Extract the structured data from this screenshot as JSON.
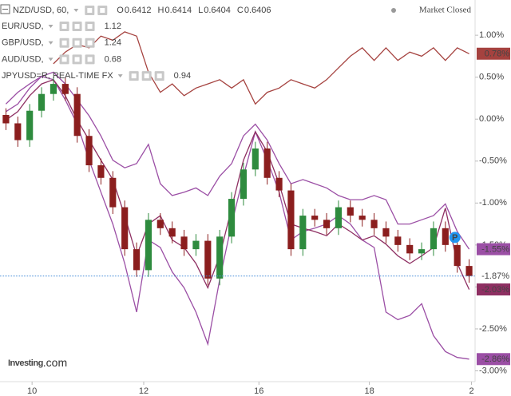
{
  "chart_data": {
    "type": "candlestick",
    "header": {
      "symbol": "NZD/USD, 60,",
      "ohlc": [
        {
          "label": "O",
          "value": 0.6412
        },
        {
          "label": "H",
          "value": 0.6414
        },
        {
          "label": "L",
          "value": 0.6404
        },
        {
          "label": "C",
          "value": 0.6406
        }
      ],
      "status": "Market Closed"
    },
    "logo": [
      "Investing",
      ".com"
    ],
    "x": [
      0,
      1,
      2,
      3,
      4,
      5,
      6,
      7,
      8,
      9,
      10,
      11,
      12,
      13,
      14,
      15,
      16,
      17,
      18,
      19,
      20,
      21,
      22,
      23,
      24,
      25,
      26,
      27,
      28,
      29,
      30,
      31,
      32,
      33,
      34,
      35,
      36,
      37,
      38,
      39
    ],
    "xlim": [
      -0.5,
      39.5
    ],
    "xticks": [
      {
        "value": 2.2,
        "label": "10"
      },
      {
        "value": 11.6,
        "label": "12"
      },
      {
        "value": 21.3,
        "label": "16"
      },
      {
        "value": 30.6,
        "label": "18"
      },
      {
        "value": 39.2,
        "label": "2"
      }
    ],
    "ylim": [
      -3.1,
      1.42
    ],
    "yticks": [
      {
        "value": 1,
        "label": "1.00%"
      },
      {
        "value": 0.5,
        "label": "0.50%"
      },
      {
        "value": 0,
        "label": "0.00%"
      },
      {
        "value": -0.5,
        "label": "-0.50%"
      },
      {
        "value": -1,
        "label": "-1.00%"
      },
      {
        "value": -1.5,
        "label": "-1.50%"
      },
      {
        "value": -2,
        "label": "-2.00%"
      },
      {
        "value": -2.5,
        "label": "-2.50%"
      },
      {
        "value": -3,
        "label": "-3.00%"
      }
    ],
    "grid": false,
    "candles": {
      "up_color": "#2e8b3e",
      "down_color": "#8b1e1e",
      "price_line_color": "#4a90d9",
      "open": [
        0.05,
        -0.05,
        -0.25,
        0.1,
        0.3,
        0.42,
        0.3,
        -0.2,
        -0.55,
        -0.7,
        -1.05,
        -1.55,
        -1.8,
        -1.2,
        -1.3,
        -1.4,
        -1.55,
        -1.45,
        -1.9,
        -1.4,
        -0.95,
        -0.6,
        -0.35,
        -0.7,
        -0.85,
        -1.55,
        -1.15,
        -1.2,
        -1.3,
        -1.05,
        -1.15,
        -1.2,
        -1.3,
        -1.4,
        -1.5,
        -1.6,
        -1.55,
        -1.3,
        -1.5,
        -1.75
      ],
      "high": [
        0.13,
        0.03,
        0.18,
        0.38,
        0.5,
        0.5,
        0.38,
        -0.12,
        -0.47,
        -0.62,
        -0.97,
        -1.47,
        -1.12,
        -1.12,
        -1.22,
        -1.32,
        -1.37,
        -1.37,
        -1.32,
        -0.87,
        -0.52,
        -0.27,
        -0.27,
        -0.62,
        -0.77,
        -1.07,
        -1.07,
        -1.12,
        -0.97,
        -0.97,
        -1.07,
        -1.12,
        -1.22,
        -1.32,
        -1.42,
        -1.47,
        -1.22,
        -1.22,
        -1.42,
        -1.67
      ],
      "low": [
        -0.13,
        -0.33,
        -0.33,
        0.02,
        0.22,
        0.22,
        -0.28,
        -0.63,
        -0.78,
        -1.13,
        -1.63,
        -1.88,
        -1.88,
        -1.38,
        -1.48,
        -1.63,
        -1.63,
        -1.98,
        -1.98,
        -1.48,
        -1.03,
        -0.68,
        -0.78,
        -0.93,
        -1.63,
        -1.63,
        -1.28,
        -1.38,
        -1.38,
        -1.23,
        -1.28,
        -1.38,
        -1.48,
        -1.58,
        -1.68,
        -1.68,
        -1.63,
        -1.58,
        -1.83,
        -1.95
      ],
      "close": [
        -0.05,
        -0.25,
        0.1,
        0.3,
        0.42,
        0.3,
        -0.2,
        -0.55,
        -0.7,
        -1.05,
        -1.55,
        -1.8,
        -1.2,
        -1.3,
        -1.4,
        -1.55,
        -1.45,
        -1.9,
        -1.4,
        -0.95,
        -0.6,
        -0.35,
        -0.7,
        -0.85,
        -1.55,
        -1.15,
        -1.2,
        -1.3,
        -1.05,
        -1.15,
        -1.2,
        -1.3,
        -1.4,
        -1.5,
        -1.6,
        -1.55,
        -1.3,
        -1.5,
        -1.75,
        -1.87
      ],
      "value_labels": [
        null,
        null,
        null,
        null,
        null,
        null,
        null,
        null,
        null,
        null,
        null,
        null,
        null,
        null,
        null,
        null,
        null,
        null,
        null,
        null,
        null,
        null,
        null,
        null,
        null,
        null,
        null,
        null,
        null,
        null,
        null,
        null,
        null,
        null,
        null,
        null,
        null,
        null,
        null,
        "-1.87%"
      ]
    },
    "annotation": {
      "text": "P",
      "x": 37.8,
      "y": -1.41,
      "color": "#2196f3"
    },
    "series": [
      {
        "name": "EUR/USD,",
        "price": 1.12,
        "price_color": "#8e3a9e",
        "color": "#a5423f",
        "values": [
          null,
          null,
          null,
          null,
          0.66,
          0.8,
          0.89,
          0.85,
          0.99,
          0.94,
          1.04,
          0.99,
          0.56,
          0.32,
          0.42,
          0.28,
          0.37,
          0.42,
          0.47,
          0.37,
          0.47,
          0.18,
          0.32,
          0.37,
          0.47,
          0.42,
          0.37,
          0.47,
          0.61,
          0.75,
          0.85,
          0.7,
          0.85,
          0.7,
          0.8,
          0.75,
          0.85,
          0.7,
          0.85,
          0.78
        ],
        "value_labels": [
          null,
          null,
          null,
          null,
          null,
          null,
          null,
          null,
          null,
          null,
          null,
          null,
          null,
          null,
          null,
          null,
          null,
          null,
          null,
          null,
          null,
          null,
          null,
          null,
          null,
          null,
          null,
          null,
          null,
          null,
          null,
          null,
          null,
          null,
          null,
          null,
          null,
          null,
          null,
          "0.78%"
        ]
      },
      {
        "name": "GBP/USD,",
        "price": 1.24,
        "price_color": "#8e3a9e",
        "color": "#9b4fa5",
        "values": [
          0.09,
          0.18,
          0.37,
          0.51,
          0.47,
          0.23,
          -0.06,
          -0.49,
          -0.87,
          -1.25,
          -1.72,
          -2.3,
          -1.44,
          -1.53,
          -1.82,
          -2.01,
          -2.3,
          -2.68,
          -1.91,
          -1.25,
          -0.68,
          -0.15,
          -0.49,
          -0.87,
          -1.44,
          -1.34,
          -1.3,
          -1.25,
          -1.15,
          -1.25,
          -1.44,
          -1.53,
          -2.3,
          -2.39,
          -2.34,
          -2.2,
          -2.58,
          -2.77,
          -2.84,
          -2.86
        ],
        "value_labels": [
          null,
          null,
          null,
          null,
          null,
          null,
          null,
          null,
          null,
          null,
          null,
          null,
          null,
          null,
          null,
          null,
          null,
          null,
          null,
          null,
          null,
          null,
          null,
          null,
          null,
          null,
          null,
          null,
          null,
          null,
          null,
          null,
          null,
          null,
          null,
          null,
          null,
          null,
          null,
          "-2.86%"
        ]
      },
      {
        "name": "AUD/USD,",
        "price": 0.68,
        "price_color": "#8b1e3a",
        "color": "#8e2f62",
        "values": [
          -0.01,
          0.09,
          0.28,
          0.42,
          0.47,
          0.28,
          -0.01,
          -0.25,
          -0.49,
          -0.72,
          -1.15,
          -1.63,
          -1.25,
          -1.15,
          -1.44,
          -1.53,
          -1.72,
          -2.01,
          -1.63,
          -1.06,
          -0.49,
          -0.15,
          -0.39,
          -0.77,
          -1.25,
          -1.3,
          -1.34,
          -1.39,
          -1.25,
          -1.34,
          -1.44,
          -1.39,
          -1.49,
          -1.63,
          -1.72,
          -1.63,
          -1.53,
          -1.06,
          -1.72,
          -2.03
        ],
        "value_labels": [
          null,
          null,
          null,
          null,
          null,
          null,
          null,
          null,
          null,
          null,
          null,
          null,
          null,
          null,
          null,
          null,
          null,
          null,
          null,
          null,
          null,
          null,
          null,
          null,
          null,
          null,
          null,
          null,
          null,
          null,
          null,
          null,
          null,
          null,
          null,
          null,
          null,
          null,
          null,
          "-2.03%"
        ]
      },
      {
        "name": "JPYUSD=R, REAL-TIME FX",
        "price": 0.94,
        "price_color": "#8b1e3a",
        "color": "#9b4fa5",
        "values": [
          0.18,
          0.32,
          0.42,
          0.51,
          0.56,
          0.42,
          0.23,
          0.04,
          -0.2,
          -0.49,
          -0.58,
          -0.53,
          -0.3,
          -0.77,
          -0.91,
          -0.87,
          -0.82,
          -0.91,
          -0.68,
          -0.53,
          -0.2,
          -0.06,
          -0.25,
          -0.53,
          -0.77,
          -0.72,
          -0.77,
          -0.82,
          -0.91,
          -0.96,
          -0.96,
          -0.91,
          -0.96,
          -1.25,
          -1.25,
          -1.2,
          -1.15,
          -1.01,
          -1.34,
          -1.55
        ],
        "value_labels": [
          null,
          null,
          null,
          null,
          null,
          null,
          null,
          null,
          null,
          null,
          null,
          null,
          null,
          null,
          null,
          null,
          null,
          null,
          null,
          null,
          null,
          null,
          null,
          null,
          null,
          null,
          null,
          null,
          null,
          null,
          null,
          null,
          null,
          null,
          null,
          null,
          null,
          null,
          null,
          "-1.55%"
        ]
      }
    ]
  }
}
